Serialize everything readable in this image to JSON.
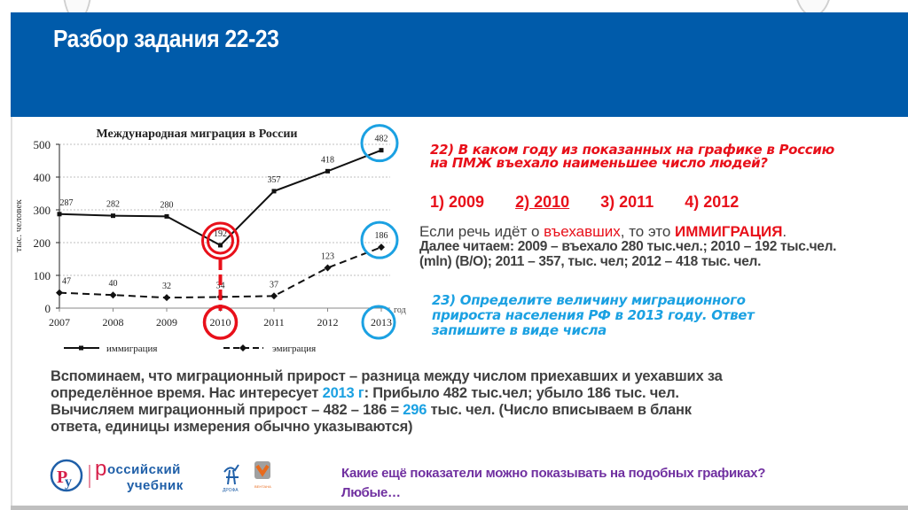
{
  "slide": {
    "title": "Разбор задания 22-23",
    "header_color": "#005BAA"
  },
  "chart_data": {
    "type": "line",
    "title": "Международная миграция в России",
    "xlabel": "год",
    "ylabel": "тыс. человек",
    "ylim": [
      0,
      500
    ],
    "yticks": [
      0,
      100,
      200,
      300,
      400,
      500
    ],
    "grid": true,
    "legend_position": "bottom",
    "categories": [
      "2007",
      "2008",
      "2009",
      "2010",
      "2011",
      "2012",
      "2013"
    ],
    "series": [
      {
        "name": "иммиграция",
        "style": "solid",
        "values": [
          287,
          282,
          280,
          192,
          357,
          418,
          482
        ]
      },
      {
        "name": "эмиграция",
        "style": "dashed",
        "values": [
          47,
          40,
          32,
          34,
          37,
          123,
          186
        ]
      }
    ],
    "annotations": [
      {
        "target": "иммиграция 2010 = 192",
        "color": "#e8101a",
        "shape": "double-circle"
      },
      {
        "target": "x-tick 2010",
        "color": "#e8101a",
        "shape": "circle"
      },
      {
        "target": "иммиграция 2013 = 482",
        "color": "#1ba1e2",
        "shape": "circle"
      },
      {
        "target": "эмиграция 2013 = 186",
        "color": "#1ba1e2",
        "shape": "circle"
      },
      {
        "target": "x-tick 2013",
        "color": "#1ba1e2",
        "shape": "circle"
      }
    ]
  },
  "question22": {
    "line1": "22) В каком году из показанных на графике в Россию",
    "line2": "на ПМЖ въехало наименьшее число людей?",
    "options": [
      "1) 2009",
      "2) 2010",
      "3) 2011",
      "4) 2012"
    ],
    "correct_index": 1
  },
  "explanation": {
    "l1_a": "Если речь идёт о ",
    "l1_b": "въехавших",
    "l1_c": ", то это ",
    "l1_d": "ИММИГРАЦИЯ",
    "l1_e": ".",
    "l2": "Далее читаем: 2009 – въехало 280 тыс.чел.; 2010 – 192 тыс.чел.",
    "l3": "(mln) (В/О); 2011 – 357, тыс. чел; 2012 – 418 тыс. чел."
  },
  "question23": {
    "line1": "23) Определите величину миграционного",
    "line2": "прироста населения РФ в 2013 году. Ответ",
    "line3": "запишите в виде числа"
  },
  "summary": {
    "l1": "Вспоминаем, что миграционный прирост – разница между числом приехавших и уехавших за",
    "l2_a": "определённое время. Нас интересует ",
    "l2_b": "2013 г",
    "l2_c": ": Прибыло 482 тыс.чел; убыло  186 тыс. чел.",
    "l3_a": "Вычисляем миграционный прирост –  482 – 186 = ",
    "l3_b": "296",
    "l3_c": " тыс. чел. (Число вписываем в бланк",
    "l4": "ответа, единицы измерения обычно указываются)"
  },
  "footer": {
    "logo_line1": "оссийский",
    "logo_p": "р",
    "logo_line2": "учебник",
    "logo_mark": "Ру",
    "question_line1": "Какие ещё показатели можно показывать на подобных графиках?",
    "question_line2": "Любые…"
  },
  "colors": {
    "red": "#e8101a",
    "blue": "#1ba1e2",
    "purple": "#7030a0",
    "text": "#404040"
  }
}
